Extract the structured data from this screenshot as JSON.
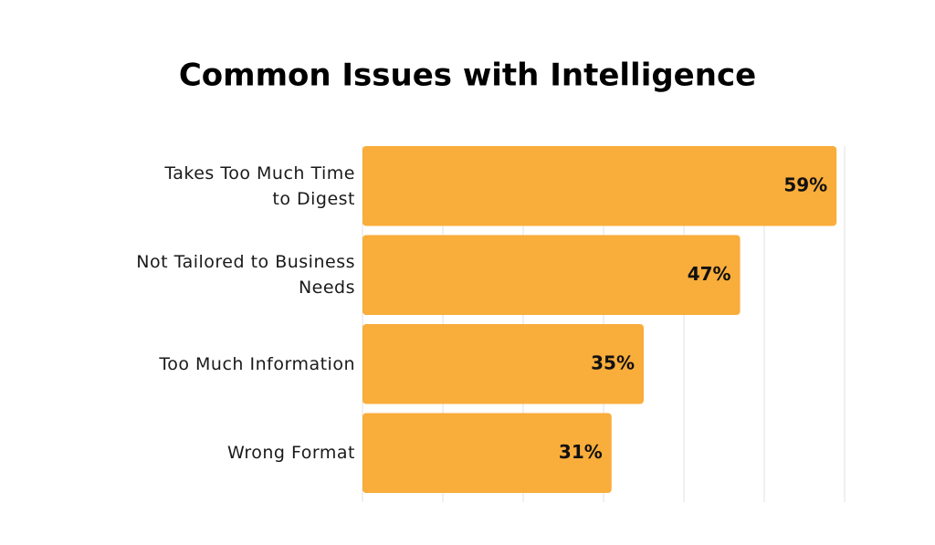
{
  "chart_data": {
    "type": "hbar",
    "title": "Common Issues with Intelligence",
    "categories": [
      "Takes Too Much Time\nto Digest",
      "Not Tailored to Business\nNeeds",
      "Too Much Information",
      "Wrong Format"
    ],
    "values": [
      59,
      47,
      35,
      31
    ],
    "value_labels": [
      "59%",
      "47%",
      "35%",
      "31%"
    ],
    "color": "#f9ad3b",
    "xlim": [
      0,
      60
    ],
    "xticks": [
      0,
      10,
      20,
      30,
      40,
      50,
      60
    ],
    "grid": true
  }
}
